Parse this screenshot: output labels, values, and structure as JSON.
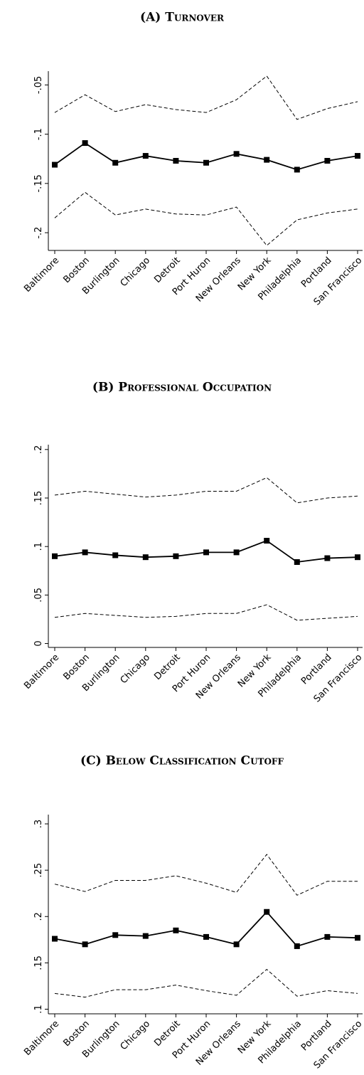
{
  "chart_data": [
    {
      "type": "line",
      "title": "(A) Turnover",
      "categories": [
        "Baltimore",
        "Boston",
        "Burlington",
        "Chicago",
        "Detroit",
        "Port Huron",
        "New Orleans",
        "New York",
        "Philadelphia",
        "Portland",
        "San Francisco"
      ],
      "series": [
        {
          "color": "#000000",
          "dash": false,
          "marker": "square",
          "values": [
            -0.131,
            -0.109,
            -0.129,
            -0.122,
            -0.127,
            -0.129,
            -0.12,
            -0.126,
            -0.136,
            -0.127,
            -0.122
          ]
        },
        {
          "color": "#000000",
          "dash": true,
          "values": [
            -0.078,
            -0.06,
            -0.077,
            -0.07,
            -0.075,
            -0.078,
            -0.065,
            -0.041,
            -0.085,
            -0.074,
            -0.067
          ]
        },
        {
          "color": "#000000",
          "dash": true,
          "values": [
            -0.185,
            -0.159,
            -0.182,
            -0.176,
            -0.181,
            -0.182,
            -0.174,
            -0.213,
            -0.187,
            -0.18,
            -0.176
          ]
        }
      ],
      "ylim": [
        -0.218,
        -0.036
      ],
      "yticks": [
        {
          "value": -0.2,
          "label": "-.2"
        },
        {
          "value": -0.15,
          "label": "-.15"
        },
        {
          "value": -0.1,
          "label": "-.1"
        },
        {
          "value": -0.05,
          "label": "-.05"
        }
      ]
    },
    {
      "type": "line",
      "title": "(B) Professional Occupation",
      "categories": [
        "Baltimore",
        "Boston",
        "Burlington",
        "Chicago",
        "Detroit",
        "Port Huron",
        "New Orleans",
        "New York",
        "Philadelphia",
        "Portland",
        "San Francisco"
      ],
      "series": [
        {
          "color": "#000000",
          "dash": false,
          "marker": "square",
          "values": [
            0.09,
            0.094,
            0.091,
            0.089,
            0.09,
            0.094,
            0.094,
            0.106,
            0.084,
            0.088,
            0.089
          ]
        },
        {
          "color": "#000000",
          "dash": true,
          "values": [
            0.153,
            0.157,
            0.154,
            0.151,
            0.153,
            0.157,
            0.157,
            0.171,
            0.145,
            0.15,
            0.152
          ]
        },
        {
          "color": "#000000",
          "dash": true,
          "values": [
            0.027,
            0.031,
            0.029,
            0.027,
            0.028,
            0.031,
            0.031,
            0.04,
            0.024,
            0.026,
            0.028
          ]
        }
      ],
      "ylim": [
        -0.004,
        0.205
      ],
      "yticks": [
        0,
        {
          "value": 0.05,
          "label": ".05"
        },
        {
          "value": 0.1,
          "label": ".1"
        },
        {
          "value": 0.15,
          "label": ".15"
        },
        {
          "value": 0.2,
          "label": ".2"
        }
      ]
    },
    {
      "type": "line",
      "title": "(C) Below Classification Cutoff",
      "categories": [
        "Baltimore",
        "Boston",
        "Burlington",
        "Chicago",
        "Detroit",
        "Port Huron",
        "New Orleans",
        "New York",
        "Philadelphia",
        "Portland",
        "San Francisco"
      ],
      "series": [
        {
          "color": "#000000",
          "dash": false,
          "marker": "square",
          "values": [
            0.176,
            0.17,
            0.18,
            0.179,
            0.185,
            0.178,
            0.17,
            0.205,
            0.168,
            0.178,
            0.177
          ]
        },
        {
          "color": "#000000",
          "dash": true,
          "values": [
            0.235,
            0.227,
            0.239,
            0.239,
            0.244,
            0.236,
            0.226,
            0.267,
            0.223,
            0.238,
            0.238
          ]
        },
        {
          "color": "#000000",
          "dash": true,
          "values": [
            0.117,
            0.113,
            0.121,
            0.121,
            0.126,
            0.12,
            0.115,
            0.143,
            0.114,
            0.12,
            0.117
          ]
        }
      ],
      "ylim": [
        0.095,
        0.31
      ],
      "yticks": [
        {
          "value": 0.1,
          "label": ".1"
        },
        {
          "value": 0.15,
          "label": ".15"
        },
        {
          "value": 0.2,
          "label": ".2"
        },
        {
          "value": 0.25,
          "label": ".25"
        },
        {
          "value": 0.3,
          "label": ".3"
        }
      ]
    }
  ]
}
